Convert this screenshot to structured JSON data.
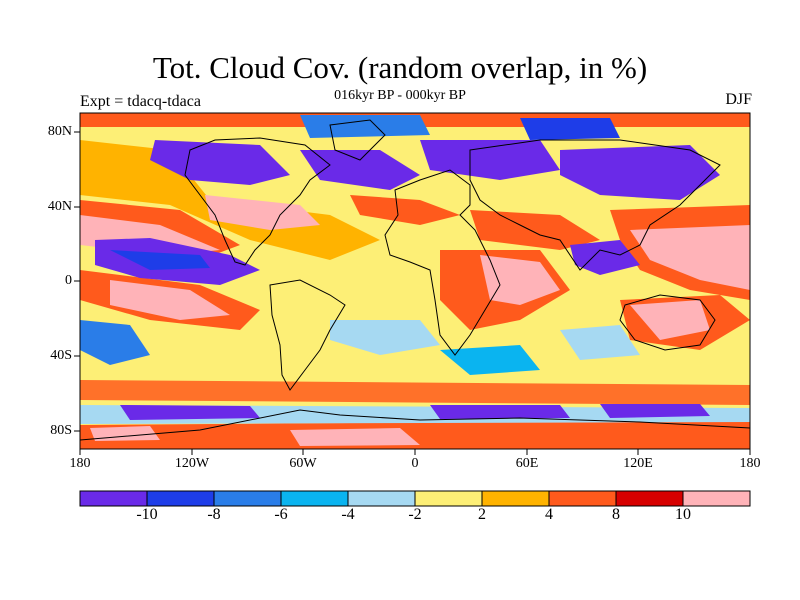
{
  "title": "Tot. Cloud Cov. (random overlap, in %)",
  "subtitle": "016kyr BP - 000kyr BP",
  "expt_label": "Expt = tdacq-tdaca",
  "season_label": "DJF",
  "lat_labels": [
    "80N",
    "40N",
    "0",
    "40S",
    "80S"
  ],
  "lon_labels": [
    "180",
    "120W",
    "60W",
    "0",
    "60E",
    "120E",
    "180"
  ],
  "colorbar": {
    "colors": [
      "#6a2ae8",
      "#1e3de8",
      "#2a7de8",
      "#0ab4f0",
      "#a6d9f2",
      "#fdef76",
      "#ffb300",
      "#ff5a1c",
      "#d60000",
      "#ffb3b8"
    ],
    "labels": [
      "-10",
      "-8",
      "-6",
      "-4",
      "-2",
      "2",
      "4",
      "8",
      "10"
    ]
  },
  "map_colors": {
    "ocean_neutral": "#fdef76",
    "contour": "#000000",
    "land_outline": "#000000"
  }
}
